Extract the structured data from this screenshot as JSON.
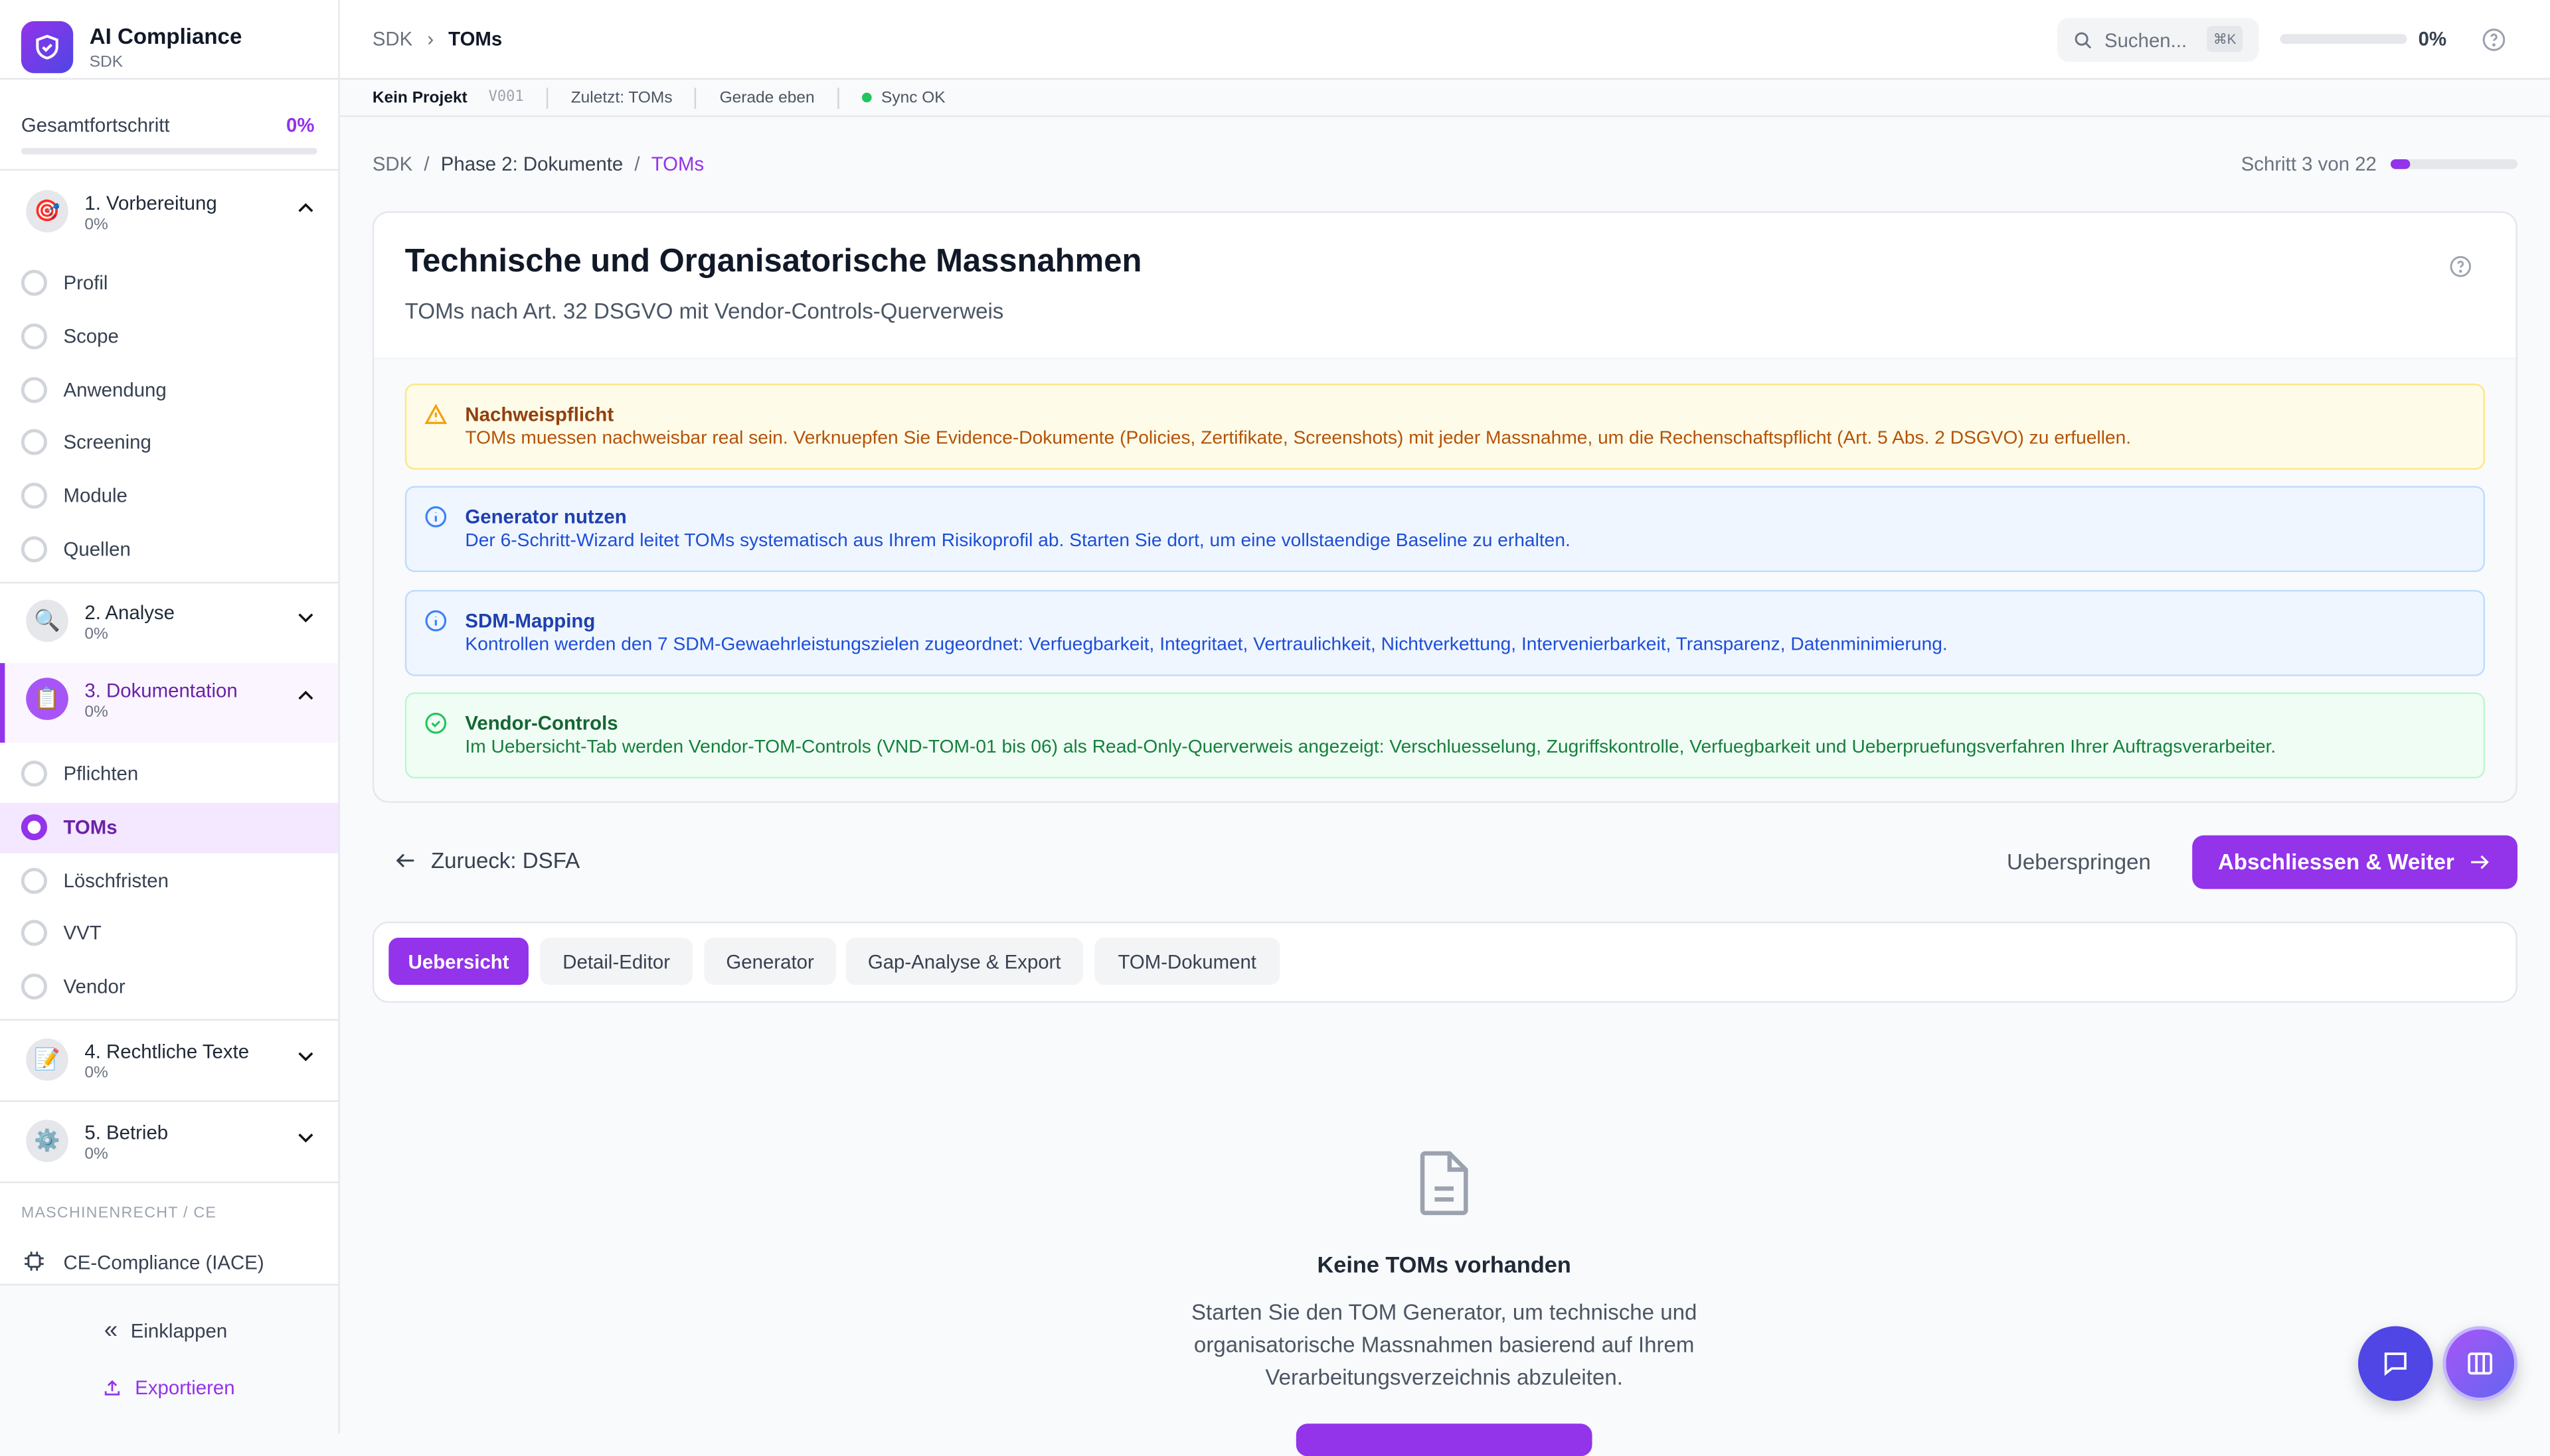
{
  "app": {
    "title": "AI Compliance",
    "subtitle": "SDK"
  },
  "sidebar": {
    "progress_label": "Gesamtfortschritt",
    "progress_value": "0%",
    "progress_fraction": 0,
    "sections": [
      {
        "label": "1. Vorbereitung",
        "progress": "0%",
        "icon": "target-icon",
        "expanded": true,
        "items": [
          "Profil",
          "Scope",
          "Anwendung",
          "Screening",
          "Module",
          "Quellen"
        ]
      },
      {
        "label": "2. Analyse",
        "progress": "0%",
        "icon": "magnifier-icon",
        "expanded": false
      },
      {
        "label": "3. Dokumentation",
        "progress": "0%",
        "icon": "clipboard-icon",
        "expanded": true,
        "active": true,
        "items": [
          "Pflichten",
          "TOMs",
          "Löschfristen",
          "VVT",
          "Vendor"
        ],
        "active_item": "TOMs"
      },
      {
        "label": "4. Rechtliche Texte",
        "progress": "0%",
        "icon": "pencil-icon",
        "expanded": false
      },
      {
        "label": "5. Betrieb",
        "progress": "0%",
        "icon": "gear-icon",
        "expanded": false
      }
    ],
    "group_label": "MASCHINENRECHT / CE",
    "ce_item": "CE-Compliance (IACE)",
    "collapse": "Einklappen",
    "export": "Exportieren"
  },
  "topbar": {
    "crumb_root": "SDK",
    "crumb_current": "TOMs",
    "search_placeholder": "Suchen...",
    "shortcut": "⌘K",
    "progress": "0%",
    "progress_fraction": 0
  },
  "statusbar": {
    "project": "Kein Projekt",
    "version": "V001",
    "last": "Zuletzt: TOMs",
    "time": "Gerade eben",
    "sync": "Sync OK",
    "sync_color": "#22c55e"
  },
  "breadcrumb": [
    "SDK",
    "Phase 2: Dokumente",
    "TOMs"
  ],
  "step": {
    "label": "Schritt 3 von 22",
    "current": 3,
    "total": 22
  },
  "card": {
    "title": "Technische und Organisatorische Massnahmen",
    "subtitle": "TOMs nach Art. 32 DSGVO mit Vendor-Controls-Querverweis"
  },
  "alerts": [
    {
      "type": "warning",
      "title": "Nachweispflicht",
      "body": "TOMs muessen nachweisbar real sein. Verknuepfen Sie Evidence-Dokumente (Policies, Zertifikate, Screenshots) mit jeder Massnahme, um die Rechenschaftspflicht (Art. 5 Abs. 2 DSGVO) zu erfuellen."
    },
    {
      "type": "info",
      "title": "Generator nutzen",
      "body": "Der 6-Schritt-Wizard leitet TOMs systematisch aus Ihrem Risikoprofil ab. Starten Sie dort, um eine vollstaendige Baseline zu erhalten."
    },
    {
      "type": "info",
      "title": "SDM-Mapping",
      "body": "Kontrollen werden den 7 SDM-Gewaehrleistungszielen zugeordnet: Verfuegbarkeit, Integritaet, Vertraulichkeit, Nichtverkettung, Intervenierbarkeit, Transparenz, Datenminimierung."
    },
    {
      "type": "success",
      "title": "Vendor-Controls",
      "body": "Im Uebersicht-Tab werden Vendor-TOM-Controls (VND-TOM-01 bis 06) als Read-Only-Querverweis angezeigt: Verschluesselung, Zugriffskontrolle, Verfuegbarkeit und Ueberpruefungsverfahren Ihrer Auftragsverarbeiter."
    }
  ],
  "nav": {
    "back": "Zurueck: DSFA",
    "skip": "Ueberspringen",
    "next": "Abschliessen & Weiter"
  },
  "tabs": [
    "Uebersicht",
    "Detail-Editor",
    "Generator",
    "Gap-Analyse & Export",
    "TOM-Dokument"
  ],
  "active_tab": "Uebersicht",
  "empty": {
    "title": "Keine TOMs vorhanden",
    "lines": [
      "Starten Sie den TOM Generator, um technische und",
      "organisatorische Massnahmen basierend auf Ihrem",
      "Verarbeitungsverzeichnis abzuleiten."
    ]
  },
  "colors": {
    "accent": "#9333ea",
    "fab_chat": "#4f46e5"
  }
}
